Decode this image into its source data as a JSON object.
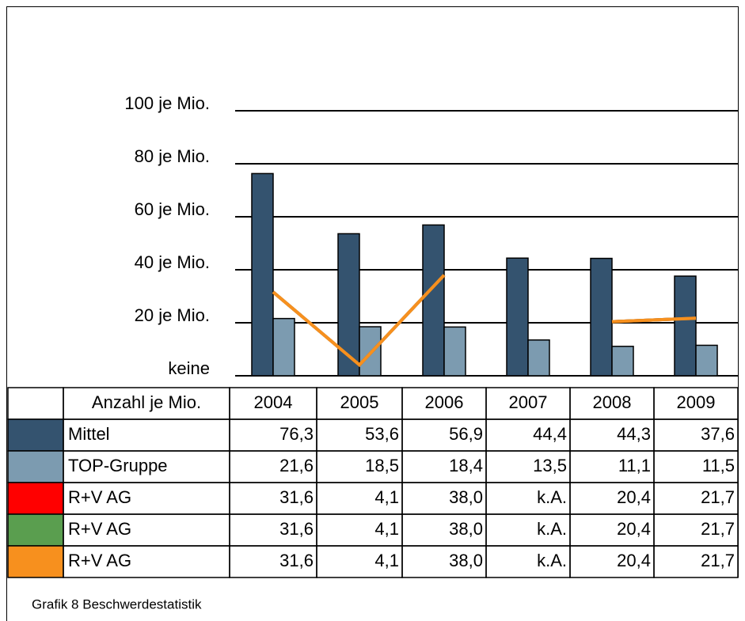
{
  "chart_data": {
    "type": "bar",
    "categories": [
      "2004",
      "2005",
      "2006",
      "2007",
      "2008",
      "2009"
    ],
    "table_label": "Anzahl je Mio.",
    "caption": "Grafik 8 Beschwerdestatistik",
    "ylim": [
      0,
      100
    ],
    "yticks": [
      {
        "value": 0,
        "label": "keine"
      },
      {
        "value": 20,
        "label": "20 je Mio."
      },
      {
        "value": 40,
        "label": "40 je Mio."
      },
      {
        "value": 60,
        "label": "60 je Mio."
      },
      {
        "value": 80,
        "label": "80 je Mio."
      },
      {
        "value": 100,
        "label": "100 je Mio."
      }
    ],
    "grid": true,
    "series": [
      {
        "name": "Mittel",
        "type": "bar",
        "color": "#34536f",
        "values": [
          76.3,
          53.6,
          56.9,
          44.4,
          44.3,
          37.6
        ],
        "value_labels": [
          "76,3",
          "53,6",
          "56,9",
          "44,4",
          "44,3",
          "37,6"
        ]
      },
      {
        "name": "TOP-Gruppe",
        "type": "bar",
        "color": "#7c9bb0",
        "values": [
          21.6,
          18.5,
          18.4,
          13.5,
          11.1,
          11.5
        ],
        "value_labels": [
          "21,6",
          "18,5",
          "18,4",
          "13,5",
          "11,1",
          "11,5"
        ]
      },
      {
        "name": "R+V AG",
        "type": "line",
        "color": "#ff0000",
        "values": [
          31.6,
          4.1,
          38.0,
          null,
          20.4,
          21.7
        ],
        "value_labels": [
          "31,6",
          "4,1",
          "38,0",
          "k.A.",
          "20,4",
          "21,7"
        ]
      },
      {
        "name": "R+V AG",
        "type": "line",
        "color": "#5a9e4f",
        "values": [
          31.6,
          4.1,
          38.0,
          null,
          20.4,
          21.7
        ],
        "value_labels": [
          "31,6",
          "4,1",
          "38,0",
          "k.A.",
          "20,4",
          "21,7"
        ]
      },
      {
        "name": "R+V AG",
        "type": "line",
        "color": "#f7901e",
        "values": [
          31.6,
          4.1,
          38.0,
          null,
          20.4,
          21.7
        ],
        "value_labels": [
          "31,6",
          "4,1",
          "38,0",
          "k.A.",
          "20,4",
          "21,7"
        ]
      }
    ]
  }
}
